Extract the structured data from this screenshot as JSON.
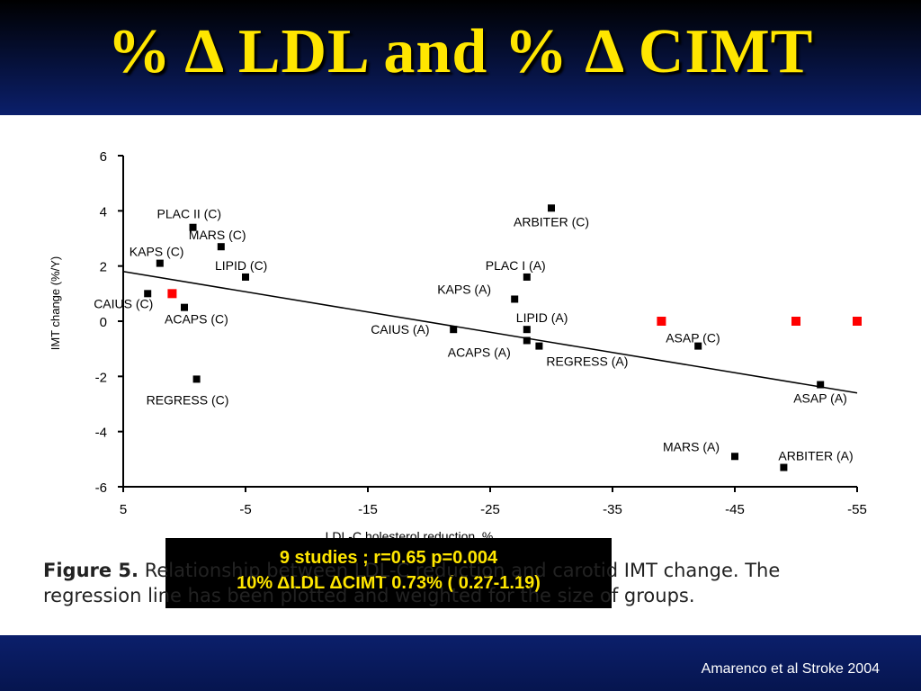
{
  "slide": {
    "title": "% Δ LDL and % Δ CIMT",
    "citation": "Amarenco et al Stroke 2004"
  },
  "annotation": {
    "line1": "9 studies ; r=0.65 p=0.004",
    "line2": "10% ΔLDL ΔCIMT 0.73% ( 0.27-1.19)"
  },
  "caption": {
    "label": "Figure 5.",
    "text": " Relationship between LDL-C reduction and carotid IMT change. The regression line has been plotted and weighted for the size of groups."
  },
  "colors": {
    "title": "#ffe600",
    "highlight": "#ff0000",
    "point": "#000000"
  },
  "chart_data": {
    "type": "scatter",
    "xlabel": "LDL-C holesterol reduction, %",
    "ylabel": "IMT change (%/Y)",
    "xlim": [
      5,
      -55
    ],
    "ylim": [
      -6,
      6
    ],
    "xticks": [
      5,
      -5,
      -15,
      -25,
      -35,
      -45,
      -55
    ],
    "yticks": [
      6,
      4,
      2,
      0,
      -2,
      -4,
      -6
    ],
    "points": [
      {
        "label": "PLAC II (C)",
        "x": -0.7,
        "y": 3.4
      },
      {
        "label": "MARS (C)",
        "x": -3.0,
        "y": 2.7
      },
      {
        "label": "KAPS (C)",
        "x": 2.0,
        "y": 2.1
      },
      {
        "label": "LIPID (C)",
        "x": -5.0,
        "y": 1.6
      },
      {
        "label": "CAIUS (C)",
        "x": 3.0,
        "y": 1.0
      },
      {
        "label": "ACAPS (C)",
        "x": 0.0,
        "y": 0.5
      },
      {
        "label": "REGRESS (C)",
        "x": -1.0,
        "y": -2.1
      },
      {
        "label": "ARBITER (C)",
        "x": -30.0,
        "y": 4.1
      },
      {
        "label": "PLAC I (A)",
        "x": -28.0,
        "y": 1.6
      },
      {
        "label": "KAPS (A)",
        "x": -27.0,
        "y": 0.8
      },
      {
        "label": "CAIUS (A)",
        "x": -22.0,
        "y": -0.3
      },
      {
        "label": "LIPID (A)",
        "x": -28.0,
        "y": -0.3
      },
      {
        "label": "ACAPS (A)",
        "x": -28.0,
        "y": -0.7
      },
      {
        "label": "REGRESS (A)",
        "x": -29.0,
        "y": -0.9
      },
      {
        "label": "ASAP (C)",
        "x": -42.0,
        "y": -0.9
      },
      {
        "label": "ASAP (A)",
        "x": -52.0,
        "y": -2.3
      },
      {
        "label": "MARS (A)",
        "x": -45.0,
        "y": -4.9
      },
      {
        "label": "ARBITER (A)",
        "x": -49.0,
        "y": -5.3
      }
    ],
    "highlighted_points": [
      {
        "x": 1.0,
        "y": 1.0
      },
      {
        "x": -39.0,
        "y": 0.0
      },
      {
        "x": -50.0,
        "y": 0.0
      },
      {
        "x": -55.0,
        "y": 0.0
      }
    ],
    "regression_line": {
      "x1": 5,
      "y1": 1.8,
      "x2": -55,
      "y2": -2.6
    }
  }
}
